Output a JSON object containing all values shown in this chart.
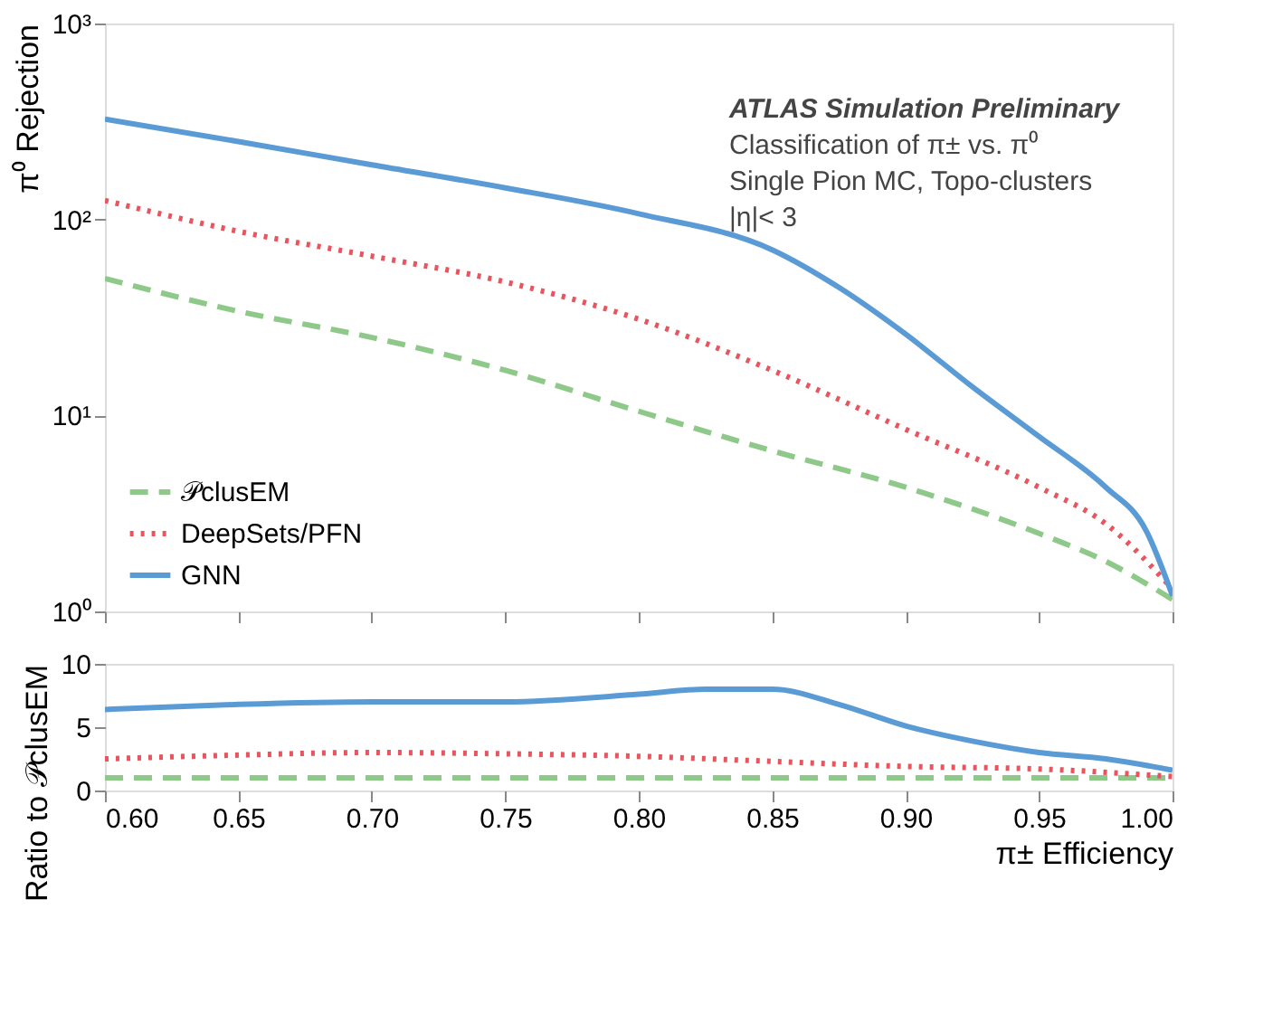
{
  "chart_data": [
    {
      "type": "line",
      "ylabel": "π⁰ Rejection",
      "log": true,
      "xlim": [
        0.6,
        1.0
      ],
      "xticks": [
        0.6,
        0.65,
        0.7,
        0.75,
        0.8,
        0.85,
        0.9,
        0.95,
        1.0
      ],
      "ylim": [
        1,
        1000
      ],
      "yticks": [
        {
          "value": 1,
          "label": "10⁰"
        },
        {
          "value": 10,
          "label": "10¹"
        },
        {
          "value": 100,
          "label": "10²"
        },
        {
          "value": 1000,
          "label": "10³"
        }
      ],
      "tick_labels": "y",
      "grid": false,
      "legend": "bottom left",
      "annotations": [
        "ATLAS Simulation Preliminary",
        "Classification of π± vs. π⁰",
        "Single Pion MC, Topo-clusters",
        "|η|< 3"
      ],
      "series": [
        {
          "name": "𝒫clusEM",
          "color": "#8fc98a",
          "line_style": "dashed",
          "x": [
            0.6,
            0.65,
            0.7,
            0.75,
            0.8,
            0.85,
            0.9,
            0.95,
            0.975,
            1.0
          ],
          "values": [
            50,
            34,
            25,
            17,
            10.5,
            6.6,
            4.3,
            2.5,
            1.8,
            1.15
          ]
        },
        {
          "name": "DeepSets/PFN",
          "color": "#e8555f",
          "line_style": "dotted",
          "x": [
            0.6,
            0.65,
            0.7,
            0.75,
            0.8,
            0.85,
            0.9,
            0.95,
            0.975,
            1.0
          ],
          "values": [
            125,
            87,
            65,
            48,
            31,
            17,
            8.5,
            4.3,
            2.8,
            1.3
          ]
        },
        {
          "name": "GNN",
          "color": "#5b9bd5",
          "line_style": "solid",
          "x": [
            0.6,
            0.65,
            0.7,
            0.75,
            0.8,
            0.85,
            0.875,
            0.9,
            0.925,
            0.95,
            0.975,
            0.99,
            1.0
          ],
          "values": [
            325,
            250,
            190,
            145,
            107,
            70,
            45,
            26,
            14,
            7.8,
            4.3,
            2.6,
            1.2
          ]
        }
      ]
    },
    {
      "type": "line",
      "xlabel": "π± Efficiency",
      "ylabel": "Ratio to 𝒫clusEM",
      "xlim": [
        0.6,
        1.0
      ],
      "xticks": [
        {
          "value": 0.6,
          "label": "0.60"
        },
        0.65,
        {
          "value": 0.7,
          "label": "0.70"
        },
        0.75,
        {
          "value": 0.8,
          "label": "0.80"
        },
        0.85,
        {
          "value": 0.9,
          "label": "0.90"
        },
        0.95,
        {
          "value": 1.0,
          "label": "1.00"
        }
      ],
      "ylim": [
        0,
        10
      ],
      "yticks": [
        0,
        5,
        10
      ],
      "grid": false,
      "legend": false,
      "series": [
        {
          "color": "#8fc98a",
          "line_style": "dashed",
          "x": [
            0.6,
            1.0
          ],
          "values": [
            1,
            1
          ]
        },
        {
          "color": "#e8555f",
          "line_style": "dotted",
          "x": [
            0.6,
            0.65,
            0.7,
            0.75,
            0.8,
            0.85,
            0.9,
            0.95,
            1.0
          ],
          "values": [
            2.5,
            2.8,
            3.0,
            2.9,
            2.7,
            2.3,
            1.9,
            1.7,
            1.1
          ]
        },
        {
          "color": "#5b9bd5",
          "line_style": "solid",
          "x": [
            0.6,
            0.65,
            0.7,
            0.75,
            0.8,
            0.825,
            0.85,
            0.875,
            0.9,
            0.925,
            0.95,
            0.975,
            1.0
          ],
          "values": [
            6.4,
            6.8,
            7.0,
            7.0,
            7.6,
            8.0,
            8.0,
            6.8,
            5.1,
            3.9,
            3.0,
            2.5,
            1.6
          ]
        }
      ]
    }
  ]
}
